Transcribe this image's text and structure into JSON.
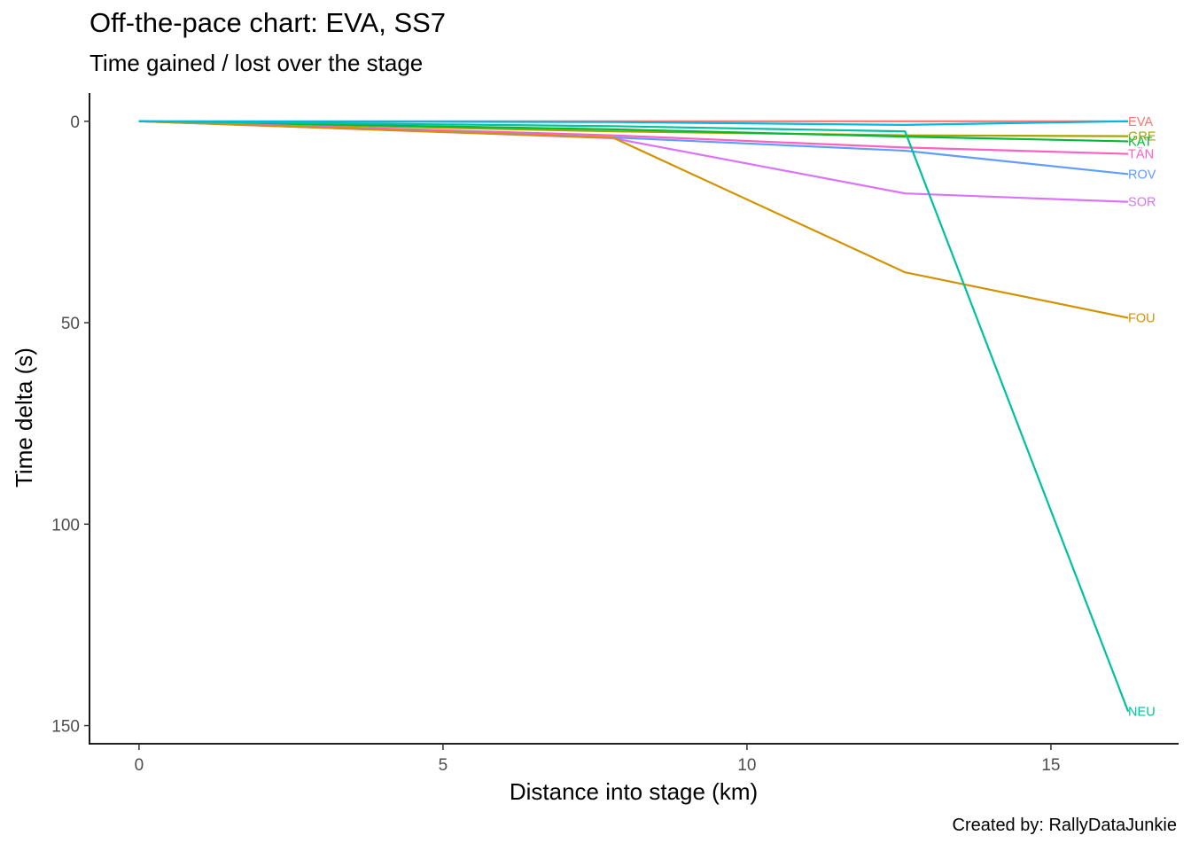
{
  "chart_data": {
    "type": "line",
    "title": "Off-the-pace chart: EVA, SS7",
    "subtitle": "Time gained / lost over the stage",
    "caption": "Created by: RallyDataJunkie",
    "xlabel": "Distance into stage (km)",
    "ylabel": "Time delta (s)",
    "xlim": [
      -0.8,
      17.1
    ],
    "ylim": [
      -7,
      154.5
    ],
    "y_reversed": true,
    "x_ticks": [
      0,
      5,
      10,
      15
    ],
    "y_ticks": [
      0,
      50,
      100,
      150
    ],
    "grid": false,
    "legend": "none (series labels at line ends)",
    "x": [
      0,
      7.8,
      12.6,
      16.27
    ],
    "series": [
      {
        "name": "EVA",
        "color": "#F8766D",
        "values": [
          0,
          0,
          0,
          0
        ]
      },
      {
        "name": "GRE",
        "color": "#A3A500",
        "values": [
          0,
          2.5,
          3.5,
          3.7
        ]
      },
      {
        "name": "KAT",
        "color": "#00BA38",
        "values": [
          0,
          2.0,
          3.8,
          5.0
        ]
      },
      {
        "name": "TÄN",
        "color": "#FF61C3",
        "values": [
          0,
          3.5,
          6.5,
          8.1
        ]
      },
      {
        "name": "ROV",
        "color": "#619CFF",
        "values": [
          0,
          4.0,
          7.3,
          13.1
        ]
      },
      {
        "name": "SOR",
        "color": "#DB72FB",
        "values": [
          0,
          4.2,
          17.9,
          20.0
        ]
      },
      {
        "name": "FOU",
        "color": "#D39200",
        "values": [
          0,
          4.1,
          37.5,
          48.8
        ]
      },
      {
        "name": "NEU",
        "color": "#00C19F",
        "values": [
          0,
          1.2,
          2.5,
          146.5
        ]
      },
      {
        "name": "",
        "color": "#00B9E3",
        "values": [
          0,
          0.2,
          0.9,
          0
        ]
      }
    ]
  }
}
